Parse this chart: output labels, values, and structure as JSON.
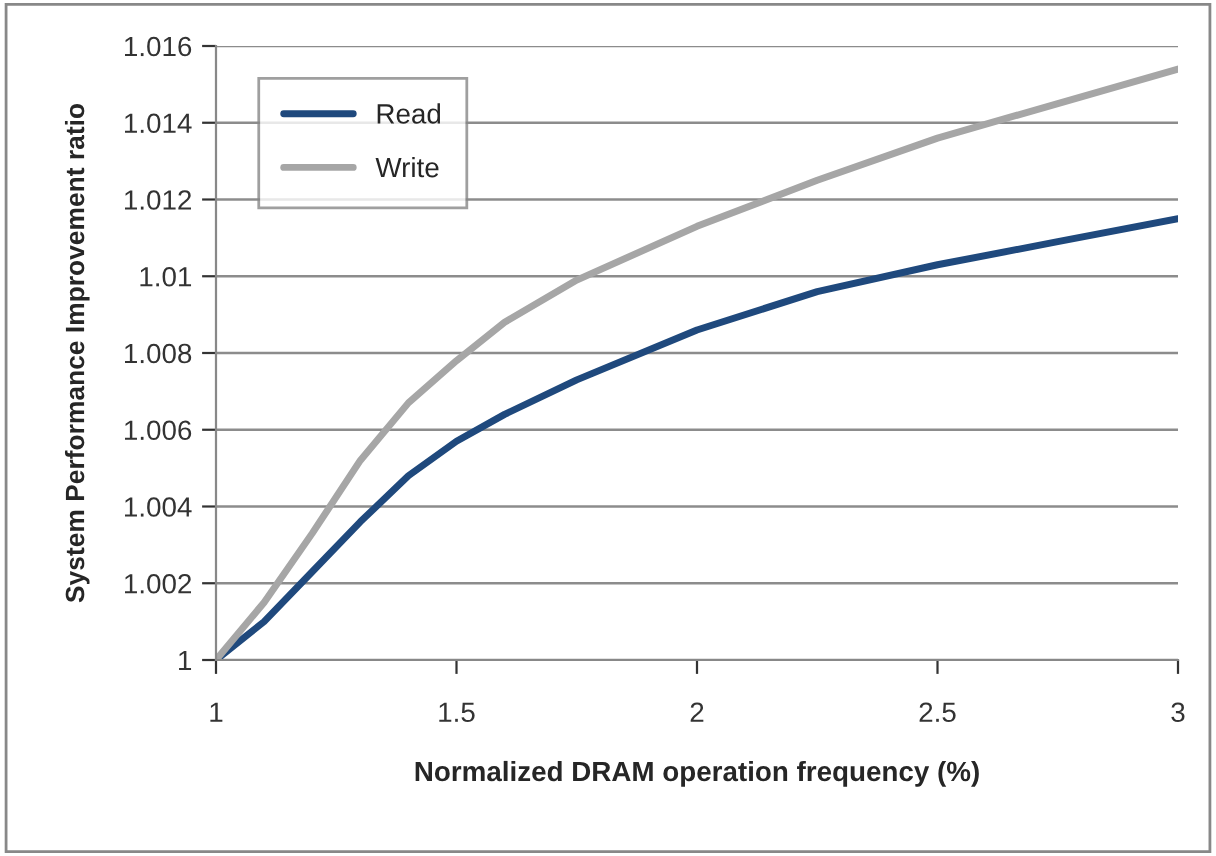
{
  "chart_data": {
    "type": "line",
    "xlabel": "Normalized DRAM operation frequency (%)",
    "ylabel": "System Performance Improvement ratio",
    "x": [
      1,
      1.1,
      1.2,
      1.3,
      1.4,
      1.5,
      1.6,
      1.75,
      2,
      2.25,
      2.5,
      2.75,
      3
    ],
    "series": [
      {
        "name": "Read",
        "color": "#1f497d",
        "values": [
          1,
          1.001,
          1.0023,
          1.0036,
          1.0048,
          1.0057,
          1.0064,
          1.0073,
          1.0086,
          1.0096,
          1.0103,
          1.0109,
          1.0115
        ]
      },
      {
        "name": "Write",
        "color": "#a6a6a6",
        "values": [
          1,
          1.0015,
          1.0033,
          1.0052,
          1.0067,
          1.0078,
          1.0088,
          1.0099,
          1.0113,
          1.0125,
          1.0136,
          1.0145,
          1.0154
        ]
      }
    ],
    "xlim": [
      1,
      3
    ],
    "xticks": [
      1,
      1.5,
      2,
      2.5,
      3
    ],
    "ylim": [
      1,
      1.016
    ],
    "yticks": [
      1,
      1.002,
      1.004,
      1.006,
      1.008,
      1.01,
      1.012,
      1.014,
      1.016
    ],
    "grid": "y",
    "legend": "top left",
    "marker": "none",
    "line_style": "solid"
  }
}
